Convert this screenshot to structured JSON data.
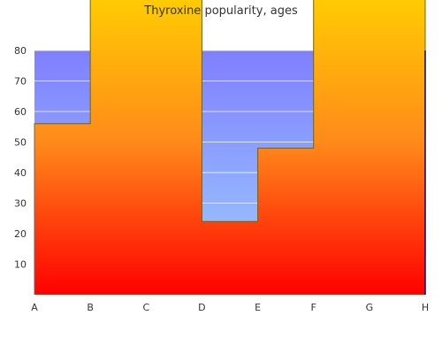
{
  "chart_data": {
    "type": "area",
    "title": "Thyroxine popularity, ages",
    "categories": [
      "A",
      "B",
      "C",
      "D",
      "E",
      "F",
      "G",
      "H"
    ],
    "y_ticks": [
      10,
      20,
      30,
      40,
      50,
      60,
      70,
      80
    ],
    "ylim": [
      0,
      80
    ],
    "grid": true,
    "legend": "none",
    "series": [
      {
        "role": "back",
        "step_values": [
          80,
          80,
          80,
          80,
          80,
          80,
          80,
          80
        ],
        "gradient_colors": [
          "#7f7fff",
          "#9fd0ff"
        ]
      },
      {
        "role": "front",
        "step_values": [
          56,
          100,
          100,
          24,
          48,
          100,
          100,
          42
        ],
        "gradient_colors": [
          "#ff0000",
          "#ff8a1a",
          "#ffd000"
        ]
      }
    ],
    "colors": {
      "back_top": "#7f7fff",
      "back_bottom": "#9fd0ff",
      "front_top": "#ffd000",
      "front_mid": "#ff8a1a",
      "front_bottom": "#ff0000",
      "outline": "#6b6b00",
      "axis": "#666666",
      "right_axis": "#000080"
    }
  }
}
